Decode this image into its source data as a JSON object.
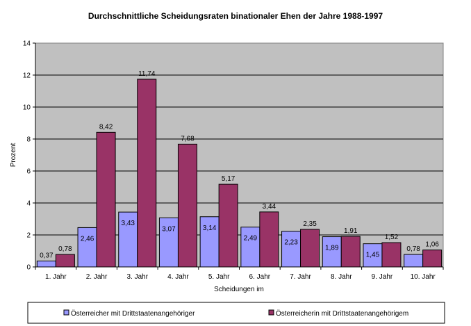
{
  "chart_data": {
    "type": "bar",
    "title": "Durchschnittliche Scheidungsraten binationaler Ehen der Jahre 1988-1997",
    "xlabel": "Scheidungen im",
    "ylabel": "Prozent",
    "ylim": [
      0,
      14
    ],
    "yticks": [
      "0",
      "2",
      "4",
      "6",
      "8",
      "10",
      "12",
      "14"
    ],
    "grid": true,
    "plot_background": "#c0c0c0",
    "legend_position": "bottom",
    "categories": [
      "1. Jahr",
      "2. Jahr",
      "3. Jahr",
      "4. Jahr",
      "5. Jahr",
      "6. Jahr",
      "7. Jahr",
      "8. Jahr",
      "9. Jahr",
      "10. Jahr"
    ],
    "series": [
      {
        "name": "Österreicher mit Drittstaatenangehöriger",
        "color": "#9999ff",
        "values": [
          0.37,
          2.46,
          3.43,
          3.07,
          3.14,
          2.49,
          2.23,
          1.89,
          1.45,
          0.78
        ],
        "labels": [
          "0,37",
          "2,46",
          "3,43",
          "3,07",
          "3,14",
          "2,49",
          "2,23",
          "1,89",
          "1,45",
          "0,78"
        ]
      },
      {
        "name": "Österreicherin mit Drittstaatenangehörigem",
        "color": "#993366",
        "values": [
          0.78,
          8.42,
          11.74,
          7.68,
          5.17,
          3.44,
          2.35,
          1.91,
          1.52,
          1.06
        ],
        "labels": [
          "0,78",
          "8,42",
          "11,74",
          "7,68",
          "5,17",
          "3,44",
          "2,35",
          "1,91",
          "1,52",
          "1,06"
        ]
      }
    ]
  }
}
